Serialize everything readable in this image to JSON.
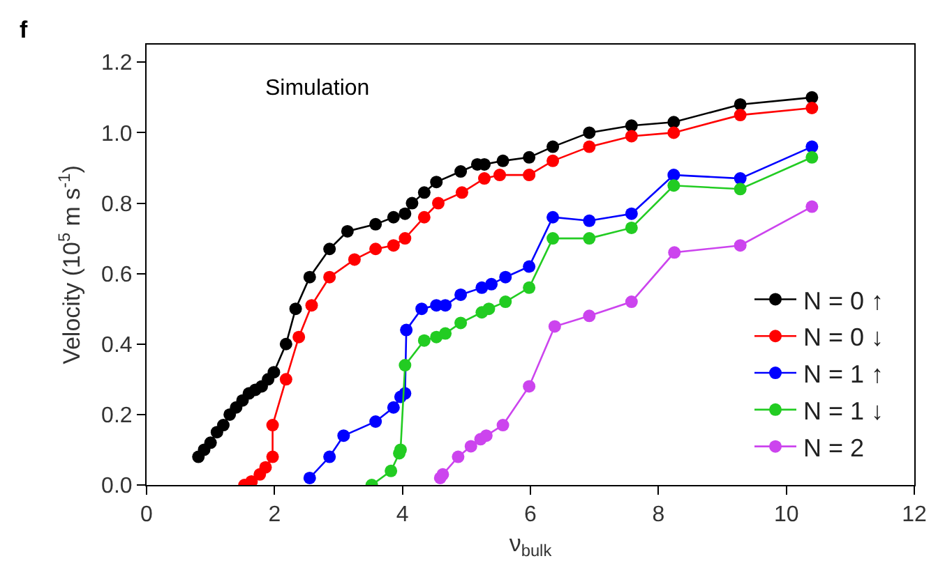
{
  "chart_data": {
    "type": "line",
    "xlabel": "ν$_{bulk}$",
    "ylabel": "Velocity (10$^{5}$ m s$^{-1}$)",
    "annotations": [
      "f",
      "Simulation"
    ],
    "xlim": [
      0,
      12
    ],
    "xticks": [
      0,
      2,
      4,
      6,
      8,
      10,
      12
    ],
    "ylim": [
      0,
      1.25
    ],
    "yticks": [
      {
        "value": 0,
        "label": "0.0"
      },
      0.2,
      0.4,
      0.6,
      0.8,
      {
        "value": 1,
        "label": "1.0"
      },
      1.2
    ],
    "grid": false,
    "legend": "bottom right",
    "marker": "circle",
    "line_style": "solid",
    "series": [
      {
        "name": "N = 0 ↑",
        "color": "#000000",
        "x": [
          0.81,
          0.9,
          1.0,
          1.1,
          1.2,
          1.3,
          1.4,
          1.5,
          1.6,
          1.7,
          1.8,
          1.9,
          1.99,
          2.18,
          2.33,
          2.55,
          2.86,
          3.14,
          3.58,
          3.86,
          4.04,
          4.15,
          4.34,
          4.53,
          4.91,
          5.17,
          5.28,
          5.57,
          5.98,
          6.35,
          6.92,
          7.58,
          8.24,
          9.28,
          10.4
        ],
        "values": [
          0.08,
          0.1,
          0.12,
          0.15,
          0.17,
          0.2,
          0.22,
          0.24,
          0.26,
          0.27,
          0.28,
          0.3,
          0.32,
          0.4,
          0.5,
          0.59,
          0.67,
          0.72,
          0.74,
          0.76,
          0.77,
          0.8,
          0.83,
          0.86,
          0.89,
          0.91,
          0.91,
          0.92,
          0.93,
          0.96,
          1.0,
          1.02,
          1.03,
          1.08,
          1.1
        ]
      },
      {
        "name": "N = 0 ↓",
        "color": "#ff0000",
        "x": [
          1.53,
          1.64,
          1.77,
          1.86,
          1.97,
          1.97,
          2.18,
          2.38,
          2.58,
          2.86,
          3.25,
          3.58,
          3.86,
          4.04,
          4.34,
          4.56,
          4.93,
          5.28,
          5.52,
          5.98,
          6.35,
          6.92,
          7.58,
          8.24,
          9.28,
          10.4
        ],
        "values": [
          0.0,
          0.01,
          0.03,
          0.05,
          0.08,
          0.17,
          0.3,
          0.42,
          0.51,
          0.59,
          0.64,
          0.67,
          0.68,
          0.7,
          0.76,
          0.8,
          0.83,
          0.87,
          0.88,
          0.88,
          0.92,
          0.96,
          0.99,
          1.0,
          1.05,
          1.07
        ]
      },
      {
        "name": "N = 1 ↑",
        "color": "#0000ff",
        "x": [
          2.55,
          2.86,
          3.08,
          3.58,
          3.86,
          3.97,
          4.04,
          4.06,
          4.3,
          4.53,
          4.67,
          4.91,
          5.24,
          5.39,
          5.61,
          5.98,
          6.35,
          6.92,
          7.58,
          8.24,
          9.28,
          10.4
        ],
        "values": [
          0.02,
          0.08,
          0.14,
          0.18,
          0.22,
          0.25,
          0.26,
          0.44,
          0.5,
          0.51,
          0.51,
          0.54,
          0.56,
          0.57,
          0.59,
          0.62,
          0.76,
          0.75,
          0.77,
          0.88,
          0.87,
          0.96
        ]
      },
      {
        "name": "N = 1 ↓",
        "color": "#22cc22",
        "x": [
          3.52,
          3.82,
          3.95,
          3.97,
          4.04,
          4.34,
          4.53,
          4.67,
          4.91,
          5.24,
          5.35,
          5.61,
          5.98,
          6.35,
          6.92,
          7.58,
          8.24,
          9.28,
          10.4
        ],
        "values": [
          0.0,
          0.04,
          0.09,
          0.1,
          0.34,
          0.41,
          0.42,
          0.43,
          0.46,
          0.49,
          0.5,
          0.52,
          0.56,
          0.7,
          0.7,
          0.73,
          0.85,
          0.84,
          0.93
        ]
      },
      {
        "name": "N = 2",
        "color": "#cc44ee",
        "x": [
          4.59,
          4.63,
          4.87,
          5.07,
          5.22,
          5.31,
          5.57,
          5.98,
          6.38,
          6.92,
          7.58,
          8.25,
          9.28,
          10.4
        ],
        "values": [
          0.02,
          0.03,
          0.08,
          0.11,
          0.13,
          0.14,
          0.17,
          0.28,
          0.45,
          0.48,
          0.52,
          0.66,
          0.68,
          0.79
        ]
      }
    ]
  }
}
